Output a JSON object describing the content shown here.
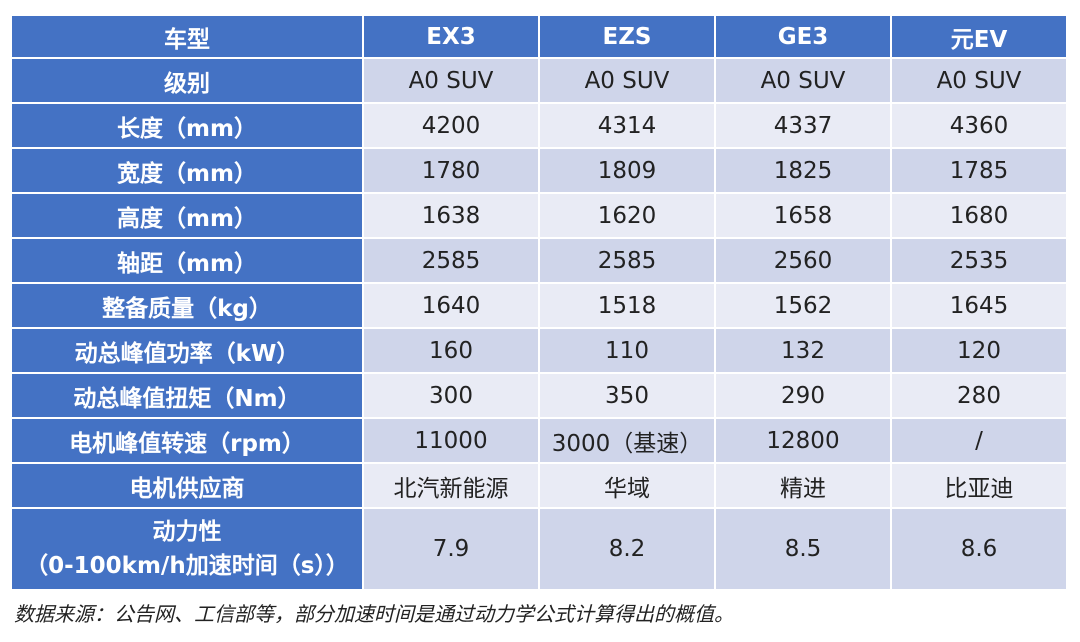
{
  "table": {
    "header": [
      "车型",
      "EX3",
      "EZS",
      "GE3",
      "元EV"
    ],
    "rows": [
      {
        "label": "级别",
        "values": [
          "A0 SUV",
          "A0 SUV",
          "A0 SUV",
          "A0 SUV"
        ]
      },
      {
        "label": "长度（mm）",
        "values": [
          "4200",
          "4314",
          "4337",
          "4360"
        ]
      },
      {
        "label": "宽度（mm）",
        "values": [
          "1780",
          "1809",
          "1825",
          "1785"
        ]
      },
      {
        "label": "高度（mm）",
        "values": [
          "1638",
          "1620",
          "1658",
          "1680"
        ]
      },
      {
        "label": "轴距（mm）",
        "values": [
          "2585",
          "2585",
          "2560",
          "2535"
        ]
      },
      {
        "label": "整备质量（kg）",
        "values": [
          "1640",
          "1518",
          "1562",
          "1645"
        ]
      },
      {
        "label": "动总峰值功率（kW）",
        "values": [
          "160",
          "110",
          "132",
          "120"
        ]
      },
      {
        "label": "动总峰值扭矩（Nm）",
        "values": [
          "300",
          "350",
          "290",
          "280"
        ]
      },
      {
        "label": "电机峰值转速（rpm）",
        "values": [
          "11000",
          "3000（基速）",
          "12800",
          "/"
        ]
      },
      {
        "label": "电机供应商",
        "values": [
          "北汽新能源",
          "华域",
          "精进",
          "比亚迪"
        ]
      },
      {
        "label_line1": "动力性",
        "label_line2": "（0-100km/h加速时间（s））",
        "values": [
          "7.9",
          "8.2",
          "8.5",
          "8.6"
        ]
      }
    ]
  },
  "footnote": "数据来源：公告网、工信部等，部分加速时间是通过动力学公式计算得出的概值。",
  "colors": {
    "header_blue": "#4472c4",
    "row_dark": "#cfd5ea",
    "row_light": "#e9ebf5",
    "header_text": "#ffffff",
    "body_text": "#222222"
  }
}
